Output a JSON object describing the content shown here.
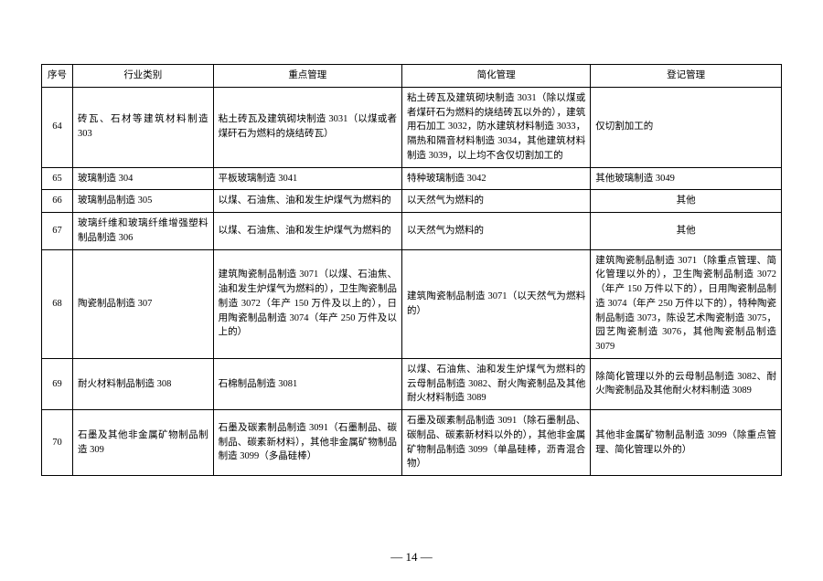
{
  "page_number": "— 14 —",
  "headers": {
    "seq": "序号",
    "category": "行业类别",
    "key_mgmt": "重点管理",
    "simplified": "简化管理",
    "registration": "登记管理"
  },
  "rows": [
    {
      "seq": "64",
      "category": "砖瓦、石材等建筑材料制造 303",
      "key_mgmt": "粘土砖瓦及建筑砌块制造 3031（以煤或者煤矸石为燃料的烧结砖瓦）",
      "simplified": "粘土砖瓦及建筑砌块制造 3031（除以煤或者煤矸石为燃料的烧结砖瓦以外的），建筑用石加工 3032，防水建筑材料制造 3033，隔热和隔音材料制造 3034，其他建筑材料制造 3039，以上均不含仅切割加工的",
      "registration": "仅切割加工的"
    },
    {
      "seq": "65",
      "category": "玻璃制造 304",
      "key_mgmt": "平板玻璃制造 3041",
      "simplified": "特种玻璃制造 3042",
      "registration": "其他玻璃制造 3049"
    },
    {
      "seq": "66",
      "category": "玻璃制品制造 305",
      "key_mgmt": "以煤、石油焦、油和发生炉煤气为燃料的",
      "simplified": "以天然气为燃料的",
      "registration": "其他",
      "reg_center": true
    },
    {
      "seq": "67",
      "category": "玻璃纤维和玻璃纤维增强塑料制品制造 306",
      "key_mgmt": "以煤、石油焦、油和发生炉煤气为燃料的",
      "simplified": "以天然气为燃料的",
      "registration": "其他",
      "reg_center": true
    },
    {
      "seq": "68",
      "category": "陶瓷制品制造 307",
      "key_mgmt": "建筑陶瓷制品制造 3071（以煤、石油焦、油和发生炉煤气为燃料的），卫生陶瓷制品制造 3072（年产 150 万件及以上的），日用陶瓷制品制造 3074（年产 250 万件及以上的）",
      "simplified": "建筑陶瓷制品制造 3071（以天然气为燃料的）",
      "registration": "建筑陶瓷制品制造 3071（除重点管理、简化管理以外的），卫生陶瓷制品制造 3072（年产 150 万件以下的），日用陶瓷制品制造 3074（年产 250 万件以下的），特种陶瓷制品制造 3073，陈设艺术陶瓷制造 3075，园艺陶瓷制造 3076，其他陶瓷制品制造 3079"
    },
    {
      "seq": "69",
      "category": "耐火材料制品制造 308",
      "key_mgmt": "石棉制品制造 3081",
      "simplified": "以煤、石油焦、油和发生炉煤气为燃料的云母制品制造 3082、耐火陶瓷制品及其他耐火材料制造 3089",
      "registration": "除简化管理以外的云母制品制造 3082、耐火陶瓷制品及其他耐火材料制造 3089"
    },
    {
      "seq": "70",
      "category": "石墨及其他非金属矿物制品制造 309",
      "key_mgmt": "石墨及碳素制品制造 3091（石墨制品、碳制品、碳素新材料），其他非金属矿物制品制造 3099（多晶硅棒）",
      "simplified": "石墨及碳素制品制造 3091（除石墨制品、碳制品、碳素新材料以外的），其他非金属矿物制品制造 3099（单晶硅棒，沥青混合物）",
      "registration": "其他非金属矿物制品制造 3099（除重点管理、简化管理以外的）"
    }
  ]
}
